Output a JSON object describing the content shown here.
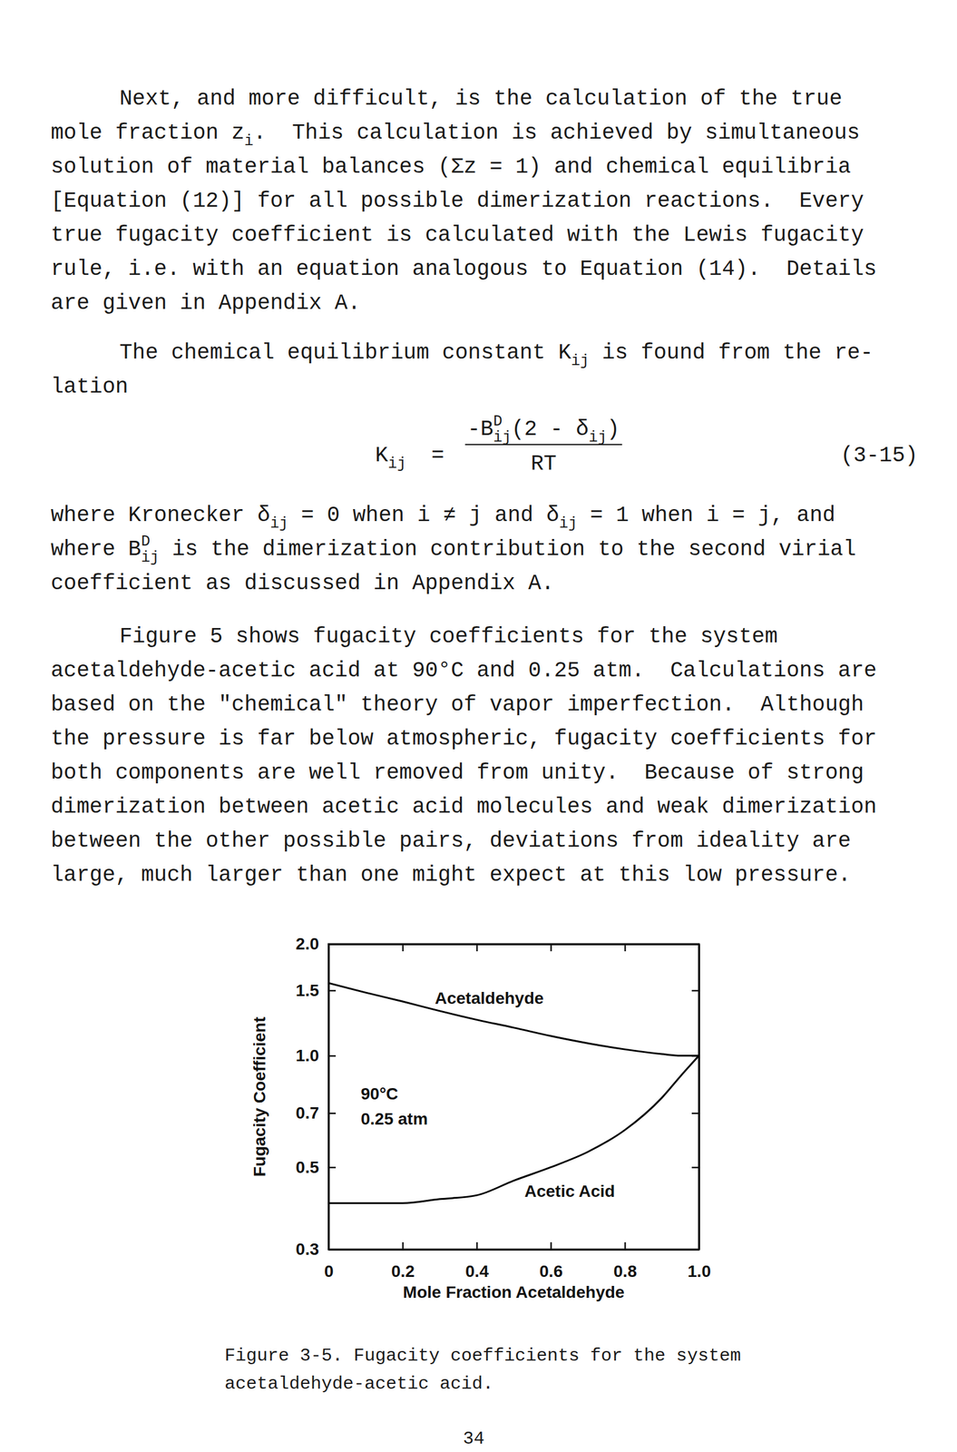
{
  "paragraphs": [
    [
      [
        "Next, and more difficult, is the calculation of the true"
      ],
      [
        "mole fraction z",
        {
          "sub": "i"
        },
        ".  This calculation is achieved by simultaneous"
      ],
      [
        "solution of material balances (Σz = 1) and chemical equilibria"
      ],
      [
        "[Equation (12)] for all possible dimerization reactions.  Every"
      ],
      [
        "true fugacity coefficient is calculated with the Lewis fugacity"
      ],
      [
        "rule, i.e. with an equation analogous to Equation (14).  Details"
      ],
      [
        "are given in Appendix A."
      ]
    ],
    [
      [
        "The chemical equilibrium constant K",
        {
          "sub": "ij"
        },
        " is found from the re-"
      ],
      [
        "lation"
      ]
    ],
    [
      [
        "where Kronecker δ",
        {
          "sub": "ij"
        },
        " = 0 when i ≠ j and δ",
        {
          "sub": "ij"
        },
        " = 1 when i = j, and"
      ],
      [
        "where B",
        {
          "sup": "D",
          "sub": "ij"
        },
        " is the dimerization contribution to the second virial"
      ],
      [
        "coefficient as discussed in Appendix A."
      ]
    ],
    [
      [
        "Figure 5 shows fugacity coefficients for the system"
      ],
      [
        "acetaldehyde-acetic acid at 90°C and 0.25 atm.  Calculations are"
      ],
      [
        "based on the \"chemical\" theory of vapor imperfection.  Although"
      ],
      [
        "the pressure is far below atmospheric, fugacity coefficients for"
      ],
      [
        "both components are well removed from unity.  Because of strong"
      ],
      [
        "dimerization between acetic acid molecules and weak dimerization"
      ],
      [
        "between the other possible pairs, deviations from ideality are"
      ],
      [
        "large, much larger than one might expect at this low pressure."
      ]
    ]
  ],
  "equation": {
    "lhs": [
      "K",
      {
        "sub": "ij"
      }
    ],
    "equals": "=",
    "numerator": [
      "-B",
      {
        "sup": "D",
        "sub": "ij"
      },
      "(2 - δ",
      {
        "sub": "ij"
      },
      ")"
    ],
    "denominator": [
      "RT"
    ],
    "number": "(3-15)"
  },
  "chart_data": {
    "type": "line",
    "log": "y",
    "xlabel": "Mole Fraction Acetaldehyde",
    "ylabel": "Fugacity Coefficient",
    "annotations": [
      "90°C",
      "0.25 atm"
    ],
    "x": [
      0,
      0.1,
      0.2,
      0.3,
      0.4,
      0.5,
      0.6,
      0.7,
      0.8,
      0.9,
      0.95,
      1.0
    ],
    "series": [
      {
        "name": "Acetaldehyde",
        "color": "#000000",
        "values": [
          1.57,
          1.48,
          1.4,
          1.32,
          1.25,
          1.19,
          1.13,
          1.08,
          1.04,
          1.01,
          1.0,
          1.0
        ]
      },
      {
        "name": "Acetic Acid",
        "color": "#000000",
        "values": [
          0.4,
          0.4,
          0.4,
          0.41,
          0.42,
          0.46,
          0.5,
          0.55,
          0.63,
          0.77,
          0.88,
          1.0
        ]
      }
    ],
    "xlim": [
      0,
      1
    ],
    "ylim": [
      0.3,
      2.0
    ],
    "xticks": [
      0,
      0.2,
      0.4,
      0.6,
      0.8,
      {
        "value": 1,
        "label": "1.0"
      }
    ],
    "yticks": [
      0.3,
      0.5,
      0.7,
      {
        "value": 1,
        "label": "1.0"
      },
      {
        "value": 1.5,
        "label": "1.5"
      },
      {
        "value": 2,
        "label": "2.0"
      }
    ]
  },
  "caption": [
    "Figure 3-5. Fugacity coefficients for the system",
    "acetaldehyde-acetic acid."
  ],
  "page_number": "34"
}
